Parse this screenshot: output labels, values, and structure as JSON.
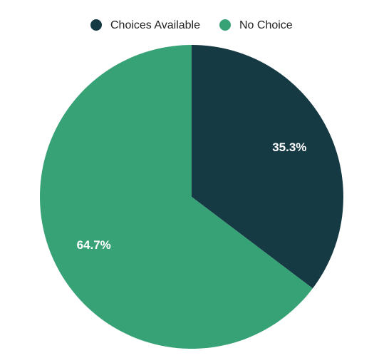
{
  "chart_data": {
    "type": "pie",
    "categories": [
      "Choices Available",
      "No Choice"
    ],
    "values": [
      35.3,
      64.7
    ],
    "value_labels": [
      "35.3%",
      "64.7%"
    ],
    "colors": [
      "#163a44",
      "#38a277"
    ],
    "legend": "top"
  }
}
